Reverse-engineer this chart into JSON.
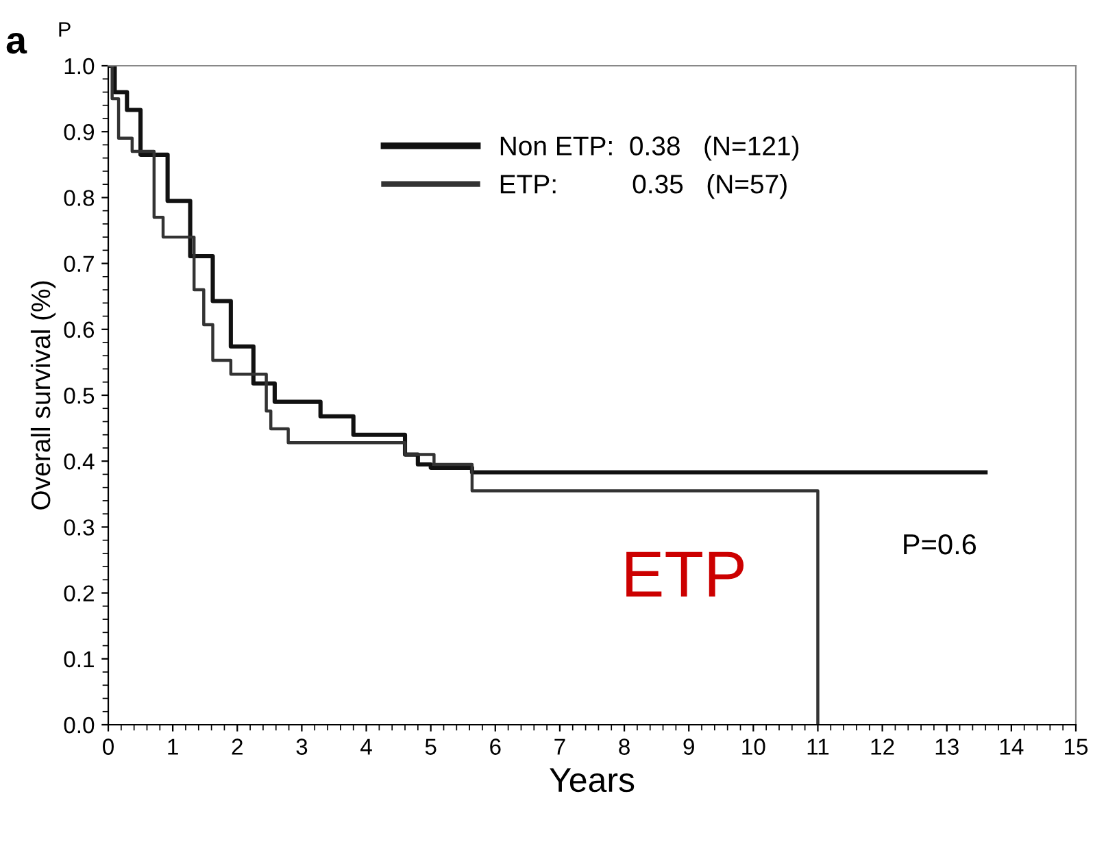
{
  "chart_data": {
    "type": "step",
    "xlabel": "Years",
    "ylabel": "Overall survival (%)",
    "xlim": [
      0,
      15
    ],
    "xticks": [
      0,
      1,
      2,
      3,
      4,
      5,
      6,
      7,
      8,
      9,
      10,
      11,
      12,
      13,
      14,
      15
    ],
    "ylim": [
      0,
      1.0
    ],
    "yticks": [
      {
        "value": 0,
        "label": "0.0"
      },
      {
        "value": 0.1,
        "label": "0.1"
      },
      {
        "value": 0.2,
        "label": "0.2"
      },
      {
        "value": 0.3,
        "label": "0.3"
      },
      {
        "value": 0.4,
        "label": "0.4"
      },
      {
        "value": 0.5,
        "label": "0.5"
      },
      {
        "value": 0.6,
        "label": "0.6"
      },
      {
        "value": 0.7,
        "label": "0.7"
      },
      {
        "value": 0.8,
        "label": "0.8"
      },
      {
        "value": 0.9,
        "label": "0.9"
      },
      {
        "value": 1.0,
        "label": "1.0"
      }
    ],
    "grid": false,
    "legend": "top",
    "marker": "none",
    "line_style": "solid",
    "series": [
      {
        "name": "Non ETP:  0.38   (N=121)",
        "color": "#111111",
        "x": [
          0,
          0.1,
          0.29,
          0.5,
          0.92,
          1.27,
          1.62,
          1.9,
          2.25,
          2.58,
          3.29,
          3.8,
          4.6,
          4.8,
          5.0,
          5.64,
          13.6
        ],
        "values": [
          1.0,
          0.96,
          0.933,
          0.865,
          0.795,
          0.711,
          0.643,
          0.574,
          0.518,
          0.49,
          0.468,
          0.44,
          0.41,
          0.395,
          0.39,
          0.383,
          0.383
        ]
      },
      {
        "name": "ETP:          0.35   (N=57)",
        "color": "#333333",
        "x": [
          0,
          0.06,
          0.16,
          0.37,
          0.71,
          0.85,
          1.33,
          1.48,
          1.62,
          1.9,
          2.45,
          2.52,
          2.79,
          4.6,
          5.05,
          5.64,
          11.0
        ],
        "values": [
          1.0,
          0.95,
          0.89,
          0.87,
          0.77,
          0.74,
          0.66,
          0.607,
          0.553,
          0.532,
          0.476,
          0.449,
          0.428,
          0.41,
          0.395,
          0.355,
          0.0
        ]
      }
    ],
    "annotations": [
      "a",
      "P",
      "ETP",
      "P=0.6"
    ]
  }
}
